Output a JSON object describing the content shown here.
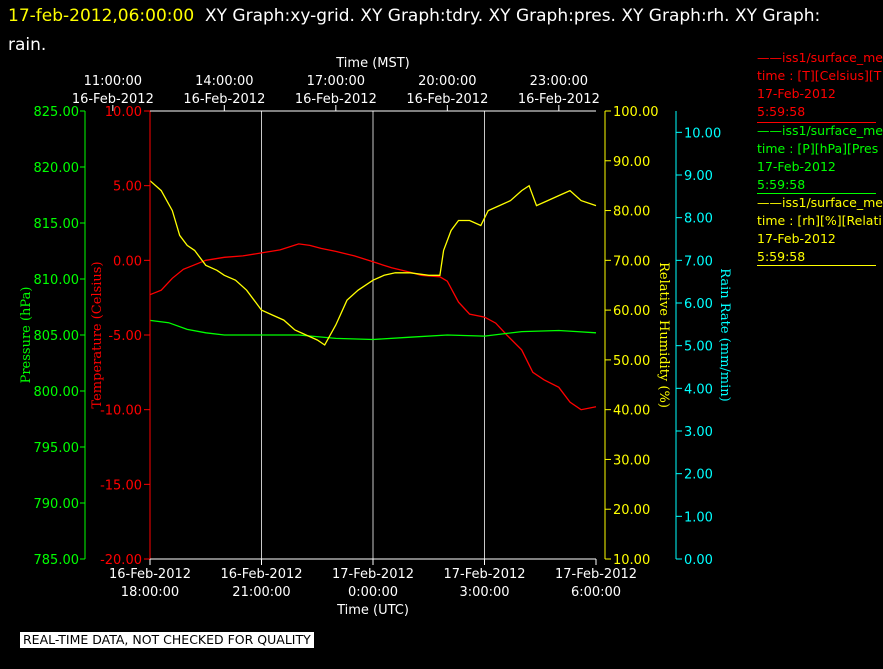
{
  "title": {
    "timestamp": "17-feb-2012,06:00:00",
    "text": "XY Graph:xy-grid.  XY Graph:tdry.  XY Graph:pres.  XY Graph:rh.  XY Graph: rain."
  },
  "legend": [
    {
      "lines": [
        "——iss1/surface_me",
        "time : [T][Celsius][T",
        "17-Feb-2012",
        "5:59:58"
      ],
      "color": "#ff0000"
    },
    {
      "lines": [
        "——iss1/surface_me",
        "time : [P][hPa][Pres",
        "17-Feb-2012",
        "5:59:58"
      ],
      "color": "#00ff00"
    },
    {
      "lines": [
        "——iss1/surface_me",
        "time : [rh][%][Relati",
        "17-Feb-2012",
        "5:59:58"
      ],
      "color": "#ffff00"
    }
  ],
  "footer": "REAL-TIME DATA, NOT CHECKED FOR QUALITY",
  "chart_data": {
    "type": "line",
    "grid": true,
    "x_top": {
      "label": "Time (MST)",
      "ticks": [
        {
          "time": "11:00:00",
          "date": "16-Feb-2012"
        },
        {
          "time": "14:00:00",
          "date": "16-Feb-2012"
        },
        {
          "time": "17:00:00",
          "date": "16-Feb-2012"
        },
        {
          "time": "20:00:00",
          "date": "16-Feb-2012"
        },
        {
          "time": "23:00:00",
          "date": "16-Feb-2012"
        }
      ]
    },
    "x_bottom": {
      "label": "Time (UTC)",
      "range": [
        "2012-02-16 18:00",
        "2012-02-17 06:00"
      ],
      "ticks": [
        {
          "date": "16-Feb-2012",
          "time": "18:00:00"
        },
        {
          "date": "16-Feb-2012",
          "time": "21:00:00"
        },
        {
          "date": "17-Feb-2012",
          "time": "0:00:00"
        },
        {
          "date": "17-Feb-2012",
          "time": "3:00:00"
        },
        {
          "date": "17-Feb-2012",
          "time": "6:00:00"
        }
      ]
    },
    "axes": {
      "pressure": {
        "label": "Pressure (hPa)",
        "color": "#00ff00",
        "range": [
          785,
          825
        ],
        "ticks": [
          "785.00",
          "790.00",
          "795.00",
          "800.00",
          "805.00",
          "810.00",
          "815.00",
          "820.00",
          "825.00"
        ]
      },
      "temperature": {
        "label": "Temperature (Celsius)",
        "color": "#ff0000",
        "range": [
          -20,
          10
        ],
        "ticks": [
          "-20.00",
          "-15.00",
          "-10.00",
          "-5.00",
          "0.00",
          "5.00",
          "10.00"
        ]
      },
      "rh": {
        "label": "Relative Humidity (%)",
        "color": "#ffff00",
        "range": [
          10,
          100
        ],
        "ticks": [
          "10.00",
          "20.00",
          "30.00",
          "40.00",
          "50.00",
          "60.00",
          "70.00",
          "80.00",
          "90.00",
          "100.00"
        ]
      },
      "rain": {
        "label": "Rain Rate (mm/min)",
        "color": "#00ffff",
        "range": [
          0,
          10.5
        ],
        "ticks": [
          "0.00",
          "1.00",
          "2.00",
          "3.00",
          "4.00",
          "5.00",
          "6.00",
          "7.00",
          "8.00",
          "9.00",
          "10.00"
        ]
      }
    },
    "series": [
      {
        "axis": "temperature",
        "color": "#ff0000",
        "points": [
          [
            0,
            -2.3
          ],
          [
            0.3,
            -2.0
          ],
          [
            0.6,
            -1.2
          ],
          [
            0.9,
            -0.6
          ],
          [
            1.2,
            -0.3
          ],
          [
            1.5,
            0
          ],
          [
            2,
            0.2
          ],
          [
            2.5,
            0.3
          ],
          [
            3,
            0.5
          ],
          [
            3.5,
            0.7
          ],
          [
            4,
            1.1
          ],
          [
            4.3,
            1.0
          ],
          [
            4.6,
            0.8
          ],
          [
            5,
            0.6
          ],
          [
            5.5,
            0.3
          ],
          [
            6,
            -0.1
          ],
          [
            6.5,
            -0.5
          ],
          [
            7,
            -0.8
          ],
          [
            7.3,
            -1.0
          ],
          [
            7.8,
            -1.1
          ],
          [
            8,
            -1.4
          ],
          [
            8.3,
            -2.8
          ],
          [
            8.6,
            -3.6
          ],
          [
            9,
            -3.8
          ],
          [
            9.3,
            -4.2
          ],
          [
            9.6,
            -5.0
          ],
          [
            10,
            -6.0
          ],
          [
            10.3,
            -7.5
          ],
          [
            10.6,
            -8.0
          ],
          [
            11,
            -8.5
          ],
          [
            11.3,
            -9.5
          ],
          [
            11.6,
            -10.0
          ],
          [
            12,
            -9.8
          ]
        ]
      },
      {
        "axis": "pressure",
        "color": "#00ff00",
        "points": [
          [
            0,
            806.3
          ],
          [
            0.5,
            806.1
          ],
          [
            1,
            805.5
          ],
          [
            1.5,
            805.2
          ],
          [
            2,
            805.0
          ],
          [
            3,
            805.0
          ],
          [
            4,
            805.0
          ],
          [
            5,
            804.7
          ],
          [
            6,
            804.6
          ],
          [
            7,
            804.8
          ],
          [
            8,
            805.0
          ],
          [
            9,
            804.9
          ],
          [
            10,
            805.3
          ],
          [
            11,
            805.4
          ],
          [
            11.5,
            805.3
          ],
          [
            12,
            805.2
          ]
        ]
      },
      {
        "axis": "rh",
        "color": "#ffff00",
        "points": [
          [
            0,
            86
          ],
          [
            0.3,
            84
          ],
          [
            0.6,
            80
          ],
          [
            0.8,
            75
          ],
          [
            1.0,
            73
          ],
          [
            1.2,
            72
          ],
          [
            1.5,
            69
          ],
          [
            1.8,
            68
          ],
          [
            2,
            67
          ],
          [
            2.3,
            66
          ],
          [
            2.6,
            64
          ],
          [
            2.8,
            62
          ],
          [
            3,
            60
          ],
          [
            3.3,
            59
          ],
          [
            3.6,
            58
          ],
          [
            3.9,
            56
          ],
          [
            4.2,
            55
          ],
          [
            4.5,
            54
          ],
          [
            4.7,
            53
          ],
          [
            5,
            57
          ],
          [
            5.3,
            62
          ],
          [
            5.6,
            64
          ],
          [
            6,
            66
          ],
          [
            6.3,
            67
          ],
          [
            6.6,
            67.5
          ],
          [
            7,
            67.5
          ],
          [
            7.5,
            67
          ],
          [
            7.8,
            67
          ],
          [
            7.9,
            72
          ],
          [
            8.1,
            76
          ],
          [
            8.3,
            78
          ],
          [
            8.6,
            78
          ],
          [
            8.9,
            77
          ],
          [
            9.1,
            80
          ],
          [
            9.4,
            81
          ],
          [
            9.7,
            82
          ],
          [
            10,
            84
          ],
          [
            10.2,
            85
          ],
          [
            10.4,
            81
          ],
          [
            10.7,
            82
          ],
          [
            11,
            83
          ],
          [
            11.3,
            84
          ],
          [
            11.6,
            82
          ],
          [
            12,
            81
          ]
        ]
      }
    ]
  }
}
